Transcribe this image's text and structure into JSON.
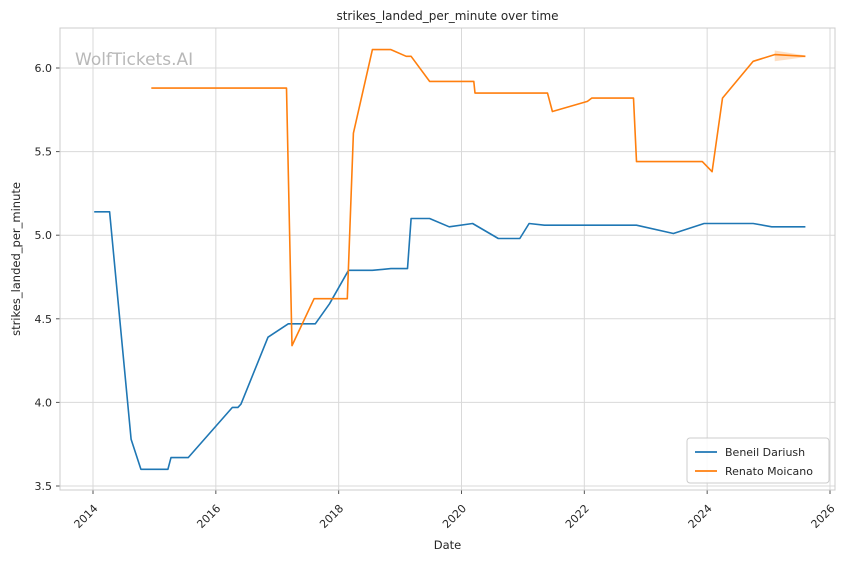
{
  "chart_data": {
    "type": "line",
    "title": "strikes_landed_per_minute over time",
    "xlabel": "Date",
    "ylabel": "strikes_landed_per_minute",
    "watermark": "WolfTickets.AI",
    "xlim": [
      2013.95,
      2025.7
    ],
    "ylim": [
      3.475,
      6.22
    ],
    "x_ticks": [
      2014,
      2016,
      2018,
      2020,
      2022,
      2024,
      2026
    ],
    "y_ticks": [
      3.5,
      4.0,
      4.5,
      5.0,
      5.5,
      6.0
    ],
    "y_tick_labels": [
      "3.5",
      "4.0",
      "4.5",
      "5.0",
      "5.5",
      "6.0"
    ],
    "grid": true,
    "legend_position": "lower-right",
    "series": [
      {
        "name": "Beneil Dariush",
        "color": "#1f77b4",
        "points": [
          [
            2014.02,
            5.14
          ],
          [
            2014.27,
            5.14
          ],
          [
            2014.62,
            3.78
          ],
          [
            2014.78,
            3.6
          ],
          [
            2015.06,
            3.6
          ],
          [
            2015.22,
            3.6
          ],
          [
            2015.27,
            3.67
          ],
          [
            2015.55,
            3.67
          ],
          [
            2016.27,
            3.97
          ],
          [
            2016.36,
            3.97
          ],
          [
            2016.41,
            3.99
          ],
          [
            2016.85,
            4.39
          ],
          [
            2017.18,
            4.47
          ],
          [
            2017.62,
            4.47
          ],
          [
            2017.85,
            4.59
          ],
          [
            2018.16,
            4.79
          ],
          [
            2018.55,
            4.79
          ],
          [
            2018.85,
            4.8
          ],
          [
            2019.12,
            4.8
          ],
          [
            2019.18,
            5.1
          ],
          [
            2019.48,
            5.1
          ],
          [
            2019.8,
            5.05
          ],
          [
            2020.18,
            5.07
          ],
          [
            2020.6,
            4.98
          ],
          [
            2020.95,
            4.98
          ],
          [
            2021.1,
            5.07
          ],
          [
            2021.35,
            5.06
          ],
          [
            2022.0,
            5.06
          ],
          [
            2022.85,
            5.06
          ],
          [
            2023.45,
            5.01
          ],
          [
            2023.95,
            5.07
          ],
          [
            2024.75,
            5.07
          ],
          [
            2025.05,
            5.05
          ],
          [
            2025.6,
            5.05
          ]
        ]
      },
      {
        "name": "Renato Moicano",
        "color": "#ff7f0e",
        "points": [
          [
            2014.95,
            5.88
          ],
          [
            2017.15,
            5.88
          ],
          [
            2017.24,
            4.34
          ],
          [
            2017.6,
            4.62
          ],
          [
            2018.14,
            4.62
          ],
          [
            2018.24,
            5.61
          ],
          [
            2018.55,
            6.11
          ],
          [
            2018.85,
            6.11
          ],
          [
            2019.1,
            6.07
          ],
          [
            2019.18,
            6.07
          ],
          [
            2019.48,
            5.92
          ],
          [
            2020.2,
            5.92
          ],
          [
            2020.22,
            5.85
          ],
          [
            2020.85,
            5.85
          ],
          [
            2021.4,
            5.85
          ],
          [
            2021.48,
            5.74
          ],
          [
            2022.05,
            5.8
          ],
          [
            2022.12,
            5.82
          ],
          [
            2022.8,
            5.82
          ],
          [
            2022.85,
            5.44
          ],
          [
            2023.92,
            5.44
          ],
          [
            2024.08,
            5.38
          ],
          [
            2024.25,
            5.82
          ],
          [
            2024.75,
            6.04
          ],
          [
            2025.1,
            6.08
          ],
          [
            2025.6,
            6.07
          ]
        ]
      }
    ]
  }
}
